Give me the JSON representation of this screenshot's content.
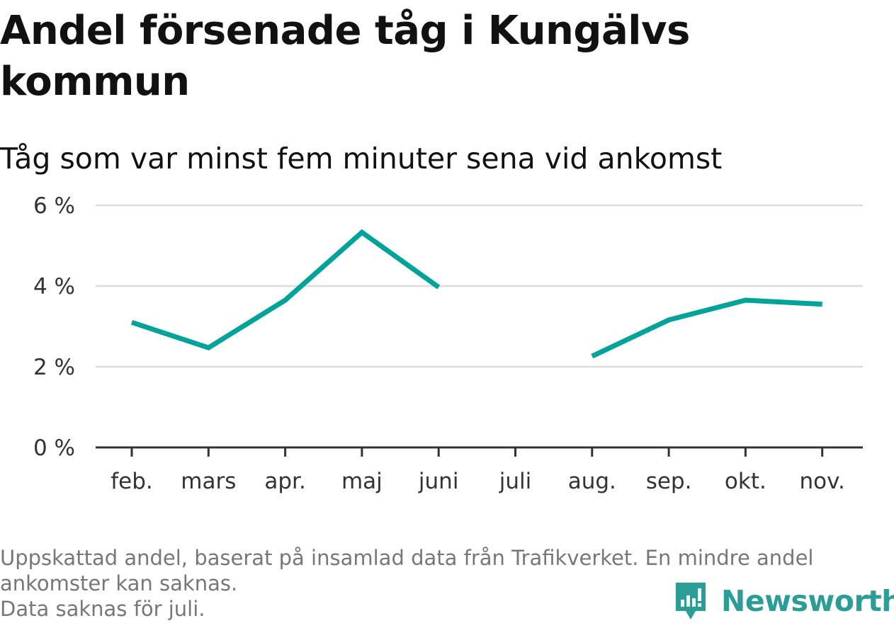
{
  "header": {
    "title": "Andel försenade tåg i Kungälvs kommun",
    "subtitle": "Tåg som var minst fem minuter sena vid ankomst"
  },
  "footnote": {
    "line1": "Uppskattad andel, baserat på insamlad data från Trafikverket. En mindre andel",
    "line2": "ankomster kan saknas.",
    "line3": "Data saknas för juli."
  },
  "logo": {
    "name": "Newsworthy",
    "icon": "newsworthy-bar-chart-icon",
    "color": "#2a9d96"
  },
  "chart_data": {
    "type": "line",
    "categories": [
      "feb.",
      "mars",
      "apr.",
      "maj",
      "juni",
      "juli",
      "aug.",
      "sep.",
      "okt.",
      "nov."
    ],
    "series": [
      {
        "values": [
          3.1,
          2.47,
          3.65,
          5.33,
          3.97,
          null,
          2.26,
          3.16,
          3.65,
          3.55
        ]
      }
    ],
    "ylim": [
      0,
      6
    ],
    "yticks": [
      0,
      2,
      4,
      6
    ],
    "ytick_labels": [
      "0 %",
      "2 %",
      "4 %",
      "6 %"
    ],
    "xlabel": "",
    "ylabel": "",
    "grid": "horizontal",
    "line_color": "#00a399",
    "grid_color": "#dddddd",
    "axis_color": "#333333"
  }
}
